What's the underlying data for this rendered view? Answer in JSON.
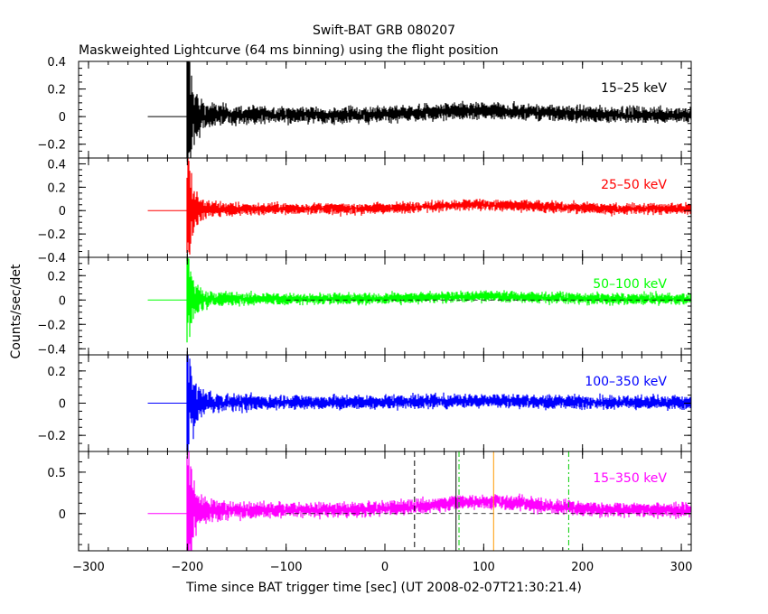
{
  "chart_data": {
    "type": "line",
    "title": "Swift-BAT GRB 080207",
    "subtitle": "Maskweighted Lightcurve (64 ms binning) using the flight position",
    "xlabel": "Time since BAT trigger time [sec] (UT 2008-02-07T21:30:21.4)",
    "ylabel": "Counts/sec/det",
    "xlim": [
      -310,
      310
    ],
    "x_ticks": [
      -300,
      -200,
      -100,
      0,
      100,
      200,
      300
    ],
    "x_tick_labels": [
      "−300",
      "−200",
      "−100",
      "0",
      "100",
      "200",
      "300"
    ],
    "panels": [
      {
        "name": "15–25 keV",
        "color": "#000000",
        "ylim": [
          -0.3,
          0.4
        ],
        "y_ticks": [
          -0.2,
          0,
          0.2,
          0.4
        ],
        "y_tick_labels": [
          "−0.2",
          "0",
          "0.2",
          "0.4"
        ],
        "noise": 0.042,
        "spike": 0.42,
        "hump": 0.03
      },
      {
        "name": "25–50 keV",
        "color": "#ff0000",
        "ylim": [
          -0.4,
          0.45
        ],
        "y_ticks": [
          -0.4,
          -0.2,
          0,
          0.2,
          0.4
        ],
        "y_tick_labels": [
          "−0.4",
          "−0.2",
          "0",
          "0.2",
          "0.4"
        ],
        "noise": 0.035,
        "spike": 0.38,
        "hump": 0.035
      },
      {
        "name": "50–100 keV",
        "color": "#00ff00",
        "ylim": [
          -0.45,
          0.35
        ],
        "y_ticks": [
          -0.4,
          -0.2,
          0,
          0.2
        ],
        "y_tick_labels": [
          "−0.4",
          "−0.2",
          "0",
          "0.2"
        ],
        "noise": 0.034,
        "spike": 0.32,
        "hump": 0.02,
        "zero_dashed": true
      },
      {
        "name": "100–350 keV",
        "color": "#0000ff",
        "ylim": [
          -0.3,
          0.3
        ],
        "y_ticks": [
          -0.2,
          0,
          0.2
        ],
        "y_tick_labels": [
          "−0.2",
          "0",
          "0.2"
        ],
        "noise": 0.032,
        "spike": 0.3,
        "hump": 0.01
      },
      {
        "name": "15–350 keV",
        "color": "#ff00ff",
        "ylim": [
          -0.45,
          0.75
        ],
        "y_ticks": [
          0,
          0.5
        ],
        "y_tick_labels": [
          "0",
          "0.5"
        ],
        "noise": 0.065,
        "spike": 0.62,
        "hump": 0.1,
        "zero_dashed": true
      }
    ],
    "pre_trigger_segment": [
      -240,
      -200
    ],
    "data_start": -200,
    "data_end": 310,
    "vertical_lines": [
      {
        "x": 30,
        "color": "#000000",
        "style": "dashed"
      },
      {
        "x": 72,
        "color": "#000000",
        "style": "solid"
      },
      {
        "x": 75,
        "color": "#00cc00",
        "style": "dashdot"
      },
      {
        "x": 110,
        "color": "#ff9900",
        "style": "solid"
      },
      {
        "x": 186,
        "color": "#00cc00",
        "style": "dashdot"
      }
    ],
    "grid": false,
    "legend": "none (band labels inside each panel, top-right)"
  }
}
